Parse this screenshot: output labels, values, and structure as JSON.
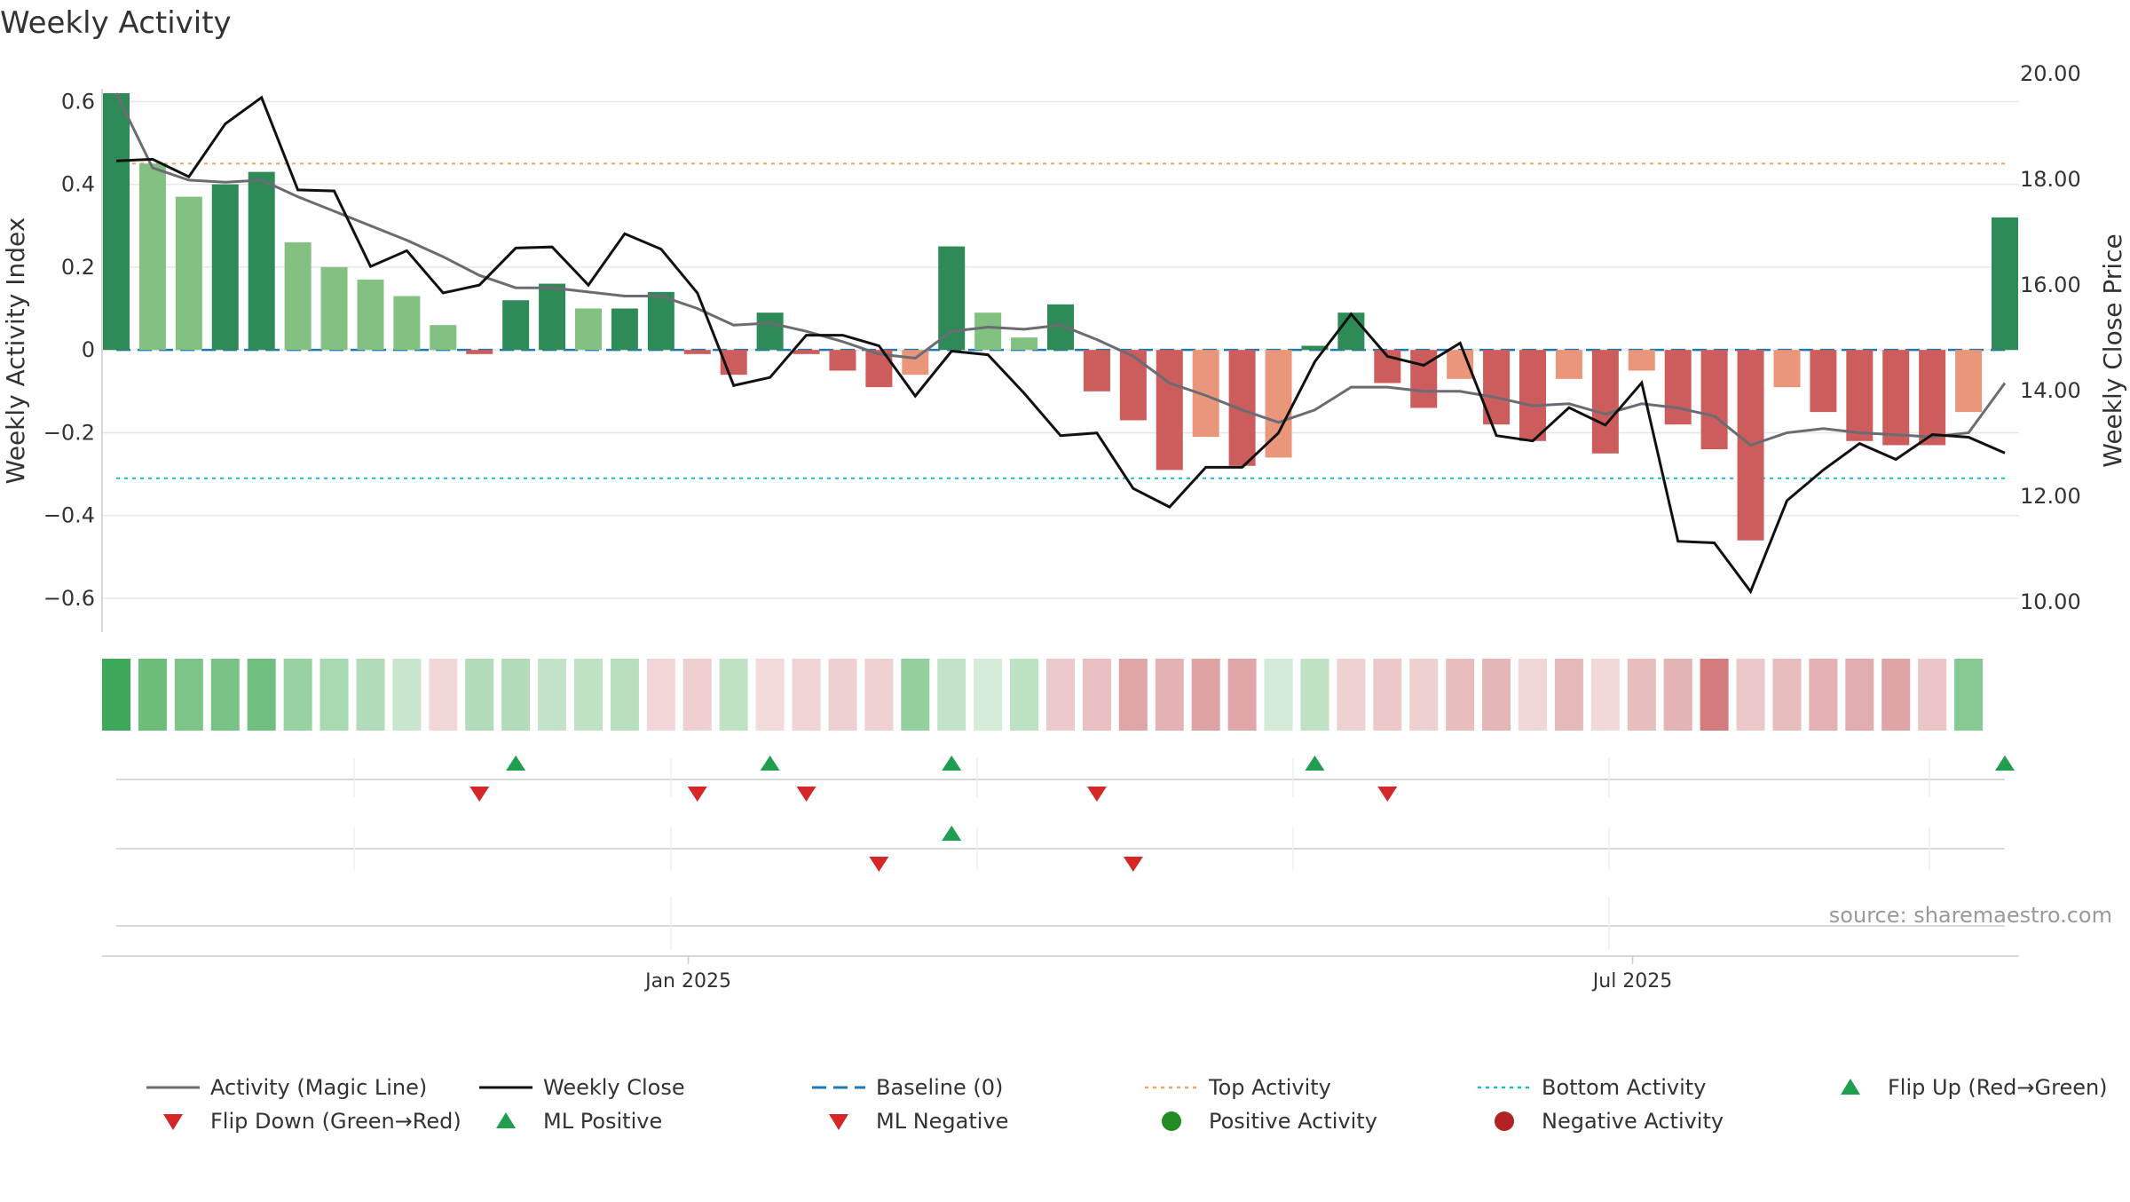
{
  "chart_data": {
    "type": "bar",
    "title": "Weekly Activity",
    "ylabel_left": "Weekly Activity Index",
    "ylabel_right": "Weekly Close Price",
    "ylim_left": [
      -0.66,
      0.62
    ],
    "ylim_right": [
      9.6,
      20.0
    ],
    "yticks_left": [
      0.6,
      0.4,
      0.2,
      0,
      -0.2,
      -0.4,
      -0.6
    ],
    "yticks_left_labels": [
      "0.6",
      "0.4",
      "0.2",
      "0",
      "−0.2",
      "−0.4",
      "−0.6"
    ],
    "yticks_right": [
      20,
      18,
      16,
      14,
      12,
      10
    ],
    "yticks_right_labels": [
      "20.00",
      "18.00",
      "16.00",
      "14.00",
      "12.00",
      "10.00"
    ],
    "x_tick_labels": [
      {
        "index": 15.75,
        "label": "Jan 2025"
      },
      {
        "index": 41.75,
        "label": "Jul 2025"
      }
    ],
    "week_count": 53,
    "activity": [
      0.62,
      0.45,
      0.37,
      0.4,
      0.43,
      0.26,
      0.2,
      0.17,
      0.13,
      0.06,
      -0.01,
      0.12,
      0.16,
      0.1,
      0.1,
      0.14,
      -0.01,
      -0.06,
      0.09,
      -0.01,
      -0.05,
      -0.09,
      -0.06,
      0.25,
      0.09,
      0.03,
      0.11,
      -0.1,
      -0.17,
      -0.29,
      -0.21,
      -0.28,
      -0.26,
      0.01,
      0.09,
      -0.08,
      -0.14,
      -0.07,
      -0.18,
      -0.22,
      -0.07,
      -0.25,
      -0.05,
      -0.18,
      -0.24,
      -0.46,
      -0.09,
      -0.15,
      -0.22,
      -0.23,
      -0.23,
      -0.15,
      0.32
    ],
    "magic_line": [
      0.62,
      0.44,
      0.41,
      0.405,
      0.41,
      0.37,
      0.335,
      0.3,
      0.265,
      0.225,
      0.18,
      0.15,
      0.15,
      0.14,
      0.13,
      0.13,
      0.1,
      0.06,
      0.065,
      0.045,
      0.02,
      -0.01,
      -0.02,
      0.045,
      0.055,
      0.05,
      0.06,
      0.025,
      -0.015,
      -0.08,
      -0.11,
      -0.145,
      -0.175,
      -0.145,
      -0.09,
      -0.09,
      -0.1,
      -0.1,
      -0.115,
      -0.135,
      -0.13,
      -0.155,
      -0.13,
      -0.14,
      -0.16,
      -0.23,
      -0.2,
      -0.19,
      -0.2,
      -0.205,
      -0.21,
      -0.2,
      -0.08
    ],
    "weekly_close": [
      18.35,
      18.38,
      18.05,
      19.05,
      19.55,
      17.8,
      17.78,
      16.35,
      16.65,
      15.85,
      16.0,
      16.7,
      16.72,
      16.0,
      16.97,
      16.68,
      15.85,
      14.1,
      14.25,
      15.05,
      15.05,
      14.85,
      13.9,
      14.75,
      14.68,
      13.95,
      13.15,
      13.2,
      12.15,
      11.8,
      12.55,
      12.55,
      13.2,
      14.55,
      15.45,
      14.65,
      14.48,
      14.9,
      13.15,
      13.05,
      13.68,
      13.35,
      14.15,
      11.15,
      11.12,
      10.2,
      11.92,
      12.5,
      13.0,
      12.7,
      13.17,
      13.12,
      12.82
    ],
    "bar_shade": [
      "dark",
      "light",
      "light",
      "dark",
      "dark",
      "light",
      "light",
      "light",
      "light",
      "light",
      "dark",
      "dark",
      "dark",
      "light",
      "dark",
      "dark",
      "dark",
      "dark",
      "dark",
      "dark",
      "dark",
      "dark",
      "light",
      "dark",
      "light",
      "light",
      "dark",
      "dark",
      "dark",
      "dark",
      "light",
      "dark",
      "light",
      "dark",
      "dark",
      "dark",
      "dark",
      "light",
      "dark",
      "dark",
      "light",
      "dark",
      "light",
      "dark",
      "dark",
      "dark",
      "light",
      "dark",
      "dark",
      "dark",
      "dark",
      "light",
      "dark"
    ],
    "baseline": 0,
    "top_activity": 0.45,
    "bottom_activity": -0.31,
    "heat_strip": [
      "#3da85a",
      "#6dbd7a",
      "#7cc488",
      "#77c284",
      "#71bf80",
      "#98d1a2",
      "#a9d9b1",
      "#b2dcb9",
      "#c8e6cd",
      "#f2d7d8",
      "#b2dcb9",
      "#b2dcb9",
      "#c2e3c8",
      "#bfe2c5",
      "#b7dfbd",
      "#f2d6d7",
      "#efcfd0",
      "#bfe2c5",
      "#f4dadb",
      "#f0d3d4",
      "#eed0d1",
      "#efd1d2",
      "#94cf9e",
      "#c2e3c8",
      "#d5ecd8",
      "#bde1c3",
      "#ecc9ca",
      "#e8c0c1",
      "#e0a6a7",
      "#e4b2b3",
      "#dfa3a4",
      "#e0a7a8",
      "#d3ead7",
      "#bfe2c5",
      "#efd1d2",
      "#ecc8c9",
      "#eed0d1",
      "#e7bdbe",
      "#e5b6b7",
      "#f1d7d8",
      "#e6b9ba",
      "#f2d8d9",
      "#e7bdbe",
      "#e4b3b4",
      "#d47c7d",
      "#ecc8c9",
      "#e7bcbd",
      "#e3b1b2",
      "#e2adae",
      "#dfa4a5",
      "#ecc6c7",
      "#86c992"
    ],
    "flip_up": [
      11,
      18,
      23,
      33,
      52
    ],
    "flip_down": [
      10,
      16,
      19,
      27,
      35
    ],
    "ml_positive": [
      23
    ],
    "ml_negative": [
      21,
      28
    ],
    "legend": [
      "Activity (Magic Line)",
      "Weekly Close",
      "Baseline (0)",
      "Top Activity",
      "Bottom Activity",
      "Flip Up (Red→Green)",
      "Flip Down (Green→Red)",
      "ML Positive",
      "ML Negative",
      "Positive Activity",
      "Negative Activity"
    ],
    "source_note": "source: sharemaestro.com"
  },
  "colors": {
    "pos_dark": "#2e8b57",
    "pos_light": "#82c181",
    "neg_dark": "#cd5c5c",
    "neg_light": "#e9967a",
    "magic_line": "#6b6b73",
    "weekly_close": "#111111",
    "baseline": "#1f77b4",
    "top_activity": "#f4a460",
    "bottom_activity": "#17becf",
    "flip_up": "#1f9e4f",
    "flip_down": "#d62728",
    "positive_dot": "#228b22",
    "negative_dot": "#b22222",
    "grid": "#e6e6e6",
    "axis_text": "#333333"
  }
}
